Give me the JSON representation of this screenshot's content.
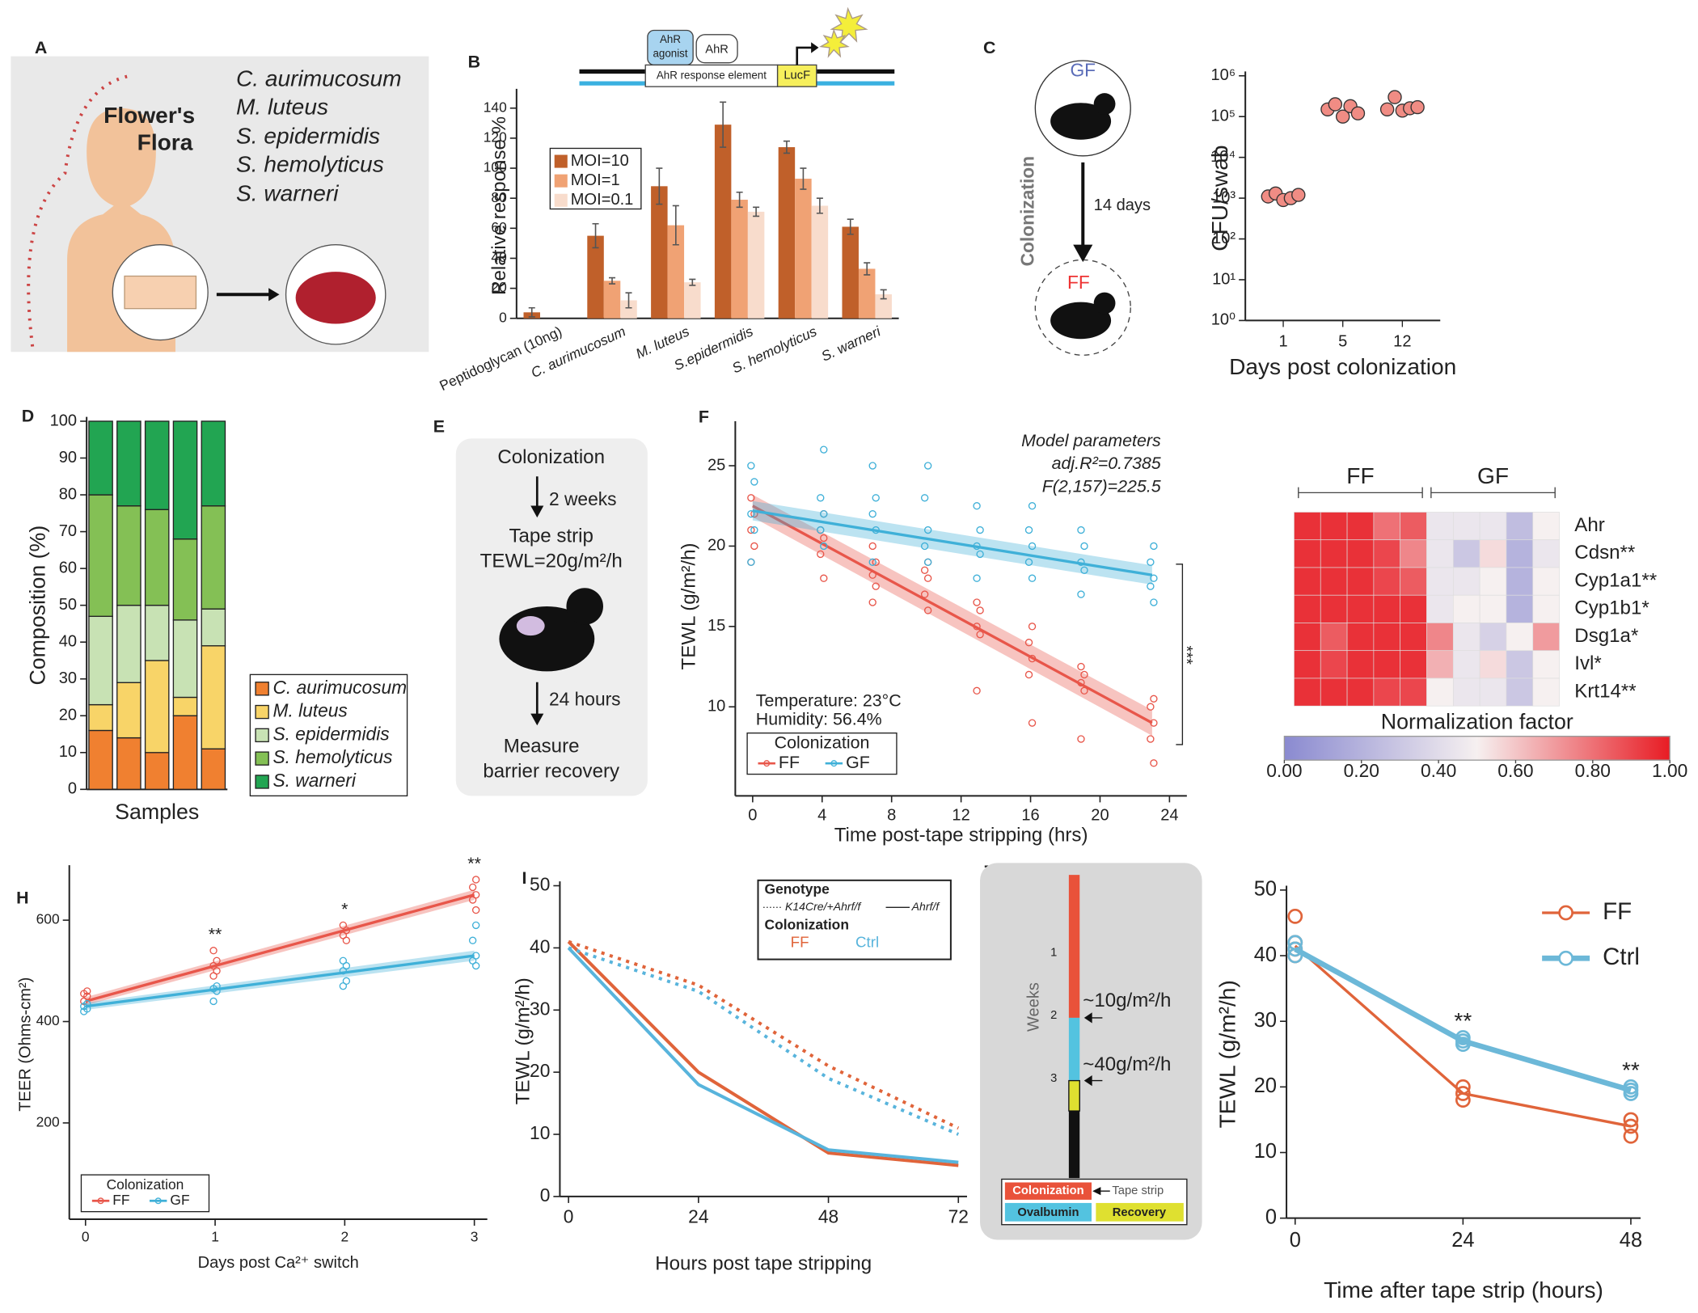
{
  "chart_data": [
    {
      "type": "bar",
      "panel": "B",
      "ylabel": "Relative response %",
      "construct": {
        "agonist_lines": [
          "AhR",
          "agonist"
        ],
        "receptor": "AhR",
        "element": "AhR response element",
        "reporter": "LucF"
      },
      "categories": [
        "Peptidoglycan (10ng)",
        "C. aurimucosum",
        "M. luteus",
        "S.epidermidis",
        "S. hemolyticus",
        "S. warneri"
      ],
      "series": [
        {
          "name": "MOI=10",
          "color": "#c0602a",
          "values": [
            4,
            55,
            88,
            129,
            114,
            61
          ],
          "errors": [
            3,
            8,
            12,
            15,
            4,
            5
          ]
        },
        {
          "name": "MOI=1",
          "color": "#f0a274",
          "values": [
            null,
            25,
            62,
            79,
            93,
            33
          ],
          "errors": [
            null,
            2,
            13,
            5,
            7,
            4
          ]
        },
        {
          "name": "MOI=0.1",
          "color": "#f8dccc",
          "values": [
            null,
            12,
            24,
            71,
            75,
            16
          ],
          "errors": [
            null,
            5,
            2,
            3,
            5,
            3
          ]
        }
      ],
      "ylim": [
        0,
        150
      ],
      "yticks": [
        0,
        20,
        40,
        60,
        80,
        100,
        120,
        140
      ]
    },
    {
      "type": "strip",
      "panel": "C",
      "ylabel": "CFU/swab",
      "xlabel": "Days post colonization",
      "log": true,
      "annotations": {
        "gf": "GF",
        "ff": "FF",
        "colonization": "Colonization",
        "duration": "14 days"
      },
      "categories": [
        "1",
        "5",
        "12"
      ],
      "color": "#f08c84",
      "values": [
        [
          1100,
          1300,
          900,
          1000,
          1200
        ],
        [
          150000,
          200000,
          100000,
          180000,
          120000
        ],
        [
          150000,
          300000,
          140000,
          160000,
          170000
        ]
      ],
      "ylim": [
        1,
        1000000
      ],
      "yticks": [
        {
          "value": 1,
          "label": "10⁰"
        },
        {
          "value": 10,
          "label": "10¹"
        },
        {
          "value": 100,
          "label": "10²"
        },
        {
          "value": 1000,
          "label": "10³"
        },
        {
          "value": 10000,
          "label": "10⁴"
        },
        {
          "value": 100000,
          "label": "10⁵"
        },
        {
          "value": 1000000,
          "label": "10⁶"
        }
      ]
    },
    {
      "type": "stacked_bar",
      "panel": "D",
      "ylabel": "Composition (%)",
      "xlabel": "Samples",
      "categories": [
        null,
        null,
        null,
        null,
        null
      ],
      "series": [
        {
          "name": "C. aurimucosum",
          "color": "#f08030",
          "values": [
            16,
            14,
            10,
            20,
            11
          ]
        },
        {
          "name": "M. luteus",
          "color": "#f8d468",
          "values": [
            7,
            15,
            25,
            5,
            28
          ]
        },
        {
          "name": "S. epidermidis",
          "color": "#c8e2b4",
          "values": [
            24,
            21,
            15,
            21,
            10
          ]
        },
        {
          "name": "S. hemolyticus",
          "color": "#84c055",
          "values": [
            33,
            27,
            26,
            22,
            28
          ]
        },
        {
          "name": "S. warneri",
          "color": "#22a552",
          "values": [
            20,
            23,
            24,
            32,
            23
          ]
        }
      ],
      "ylim": [
        0,
        100
      ],
      "yticks": [
        0,
        10,
        20,
        30,
        40,
        50,
        60,
        70,
        80,
        90,
        100
      ]
    },
    {
      "type": "regression",
      "panel": "F",
      "ylabel": "TEWL (g/m²/h)",
      "xlabel": "Time post-tape stripping (hrs)",
      "legend_title": "Colonization",
      "annotations": {
        "model_title": "Model parameters",
        "r2": "adj.R²=0.7385",
        "f": "F(2,157)=225.5",
        "temperature": "Temperature: 23°C",
        "humidity": "Humidity: 56.4%",
        "significance": "***"
      },
      "series": [
        {
          "name": "FF",
          "color": "#e8564a",
          "x": [
            0,
            0,
            0,
            0,
            0,
            4,
            4,
            4,
            4,
            4,
            7,
            7,
            7,
            7,
            7,
            10,
            10,
            10,
            10,
            10,
            13,
            13,
            13,
            13,
            13,
            16,
            16,
            16,
            16,
            16,
            19,
            19,
            19,
            19,
            19,
            23,
            23,
            23,
            23,
            23
          ],
          "y": [
            19,
            20,
            21,
            22,
            23,
            18,
            19.5,
            20.5,
            21,
            22,
            16.5,
            17.5,
            18.2,
            19,
            20,
            16,
            17,
            18,
            18.5,
            19,
            11,
            14.5,
            15,
            16,
            16.5,
            9,
            12,
            13,
            14,
            15,
            8,
            11,
            11.5,
            12,
            12.5,
            6.5,
            8,
            9,
            10,
            10.5
          ],
          "fit": {
            "x": [
              0,
              23
            ],
            "y": [
              22.5,
              9
            ],
            "lower": [
              21.8,
              8.2
            ],
            "upper": [
              23.2,
              9.8
            ]
          }
        },
        {
          "name": "GF",
          "color": "#3fb0d8",
          "x": [
            0,
            0,
            0,
            0,
            0,
            4,
            4,
            4,
            4,
            4,
            7,
            7,
            7,
            7,
            7,
            10,
            10,
            10,
            10,
            10,
            13,
            13,
            13,
            13,
            13,
            16,
            16,
            16,
            16,
            16,
            19,
            19,
            19,
            19,
            19,
            23,
            23,
            23,
            23,
            23
          ],
          "y": [
            19,
            21,
            22,
            24,
            25,
            20,
            21,
            22,
            23,
            26,
            19,
            21,
            22,
            23,
            25,
            19,
            20,
            21,
            23,
            25,
            18,
            19.5,
            20,
            21,
            22.5,
            18,
            19,
            20,
            21,
            22.5,
            17,
            18.5,
            19,
            20,
            21,
            16.5,
            17.5,
            18,
            19,
            20
          ],
          "fit": {
            "x": [
              0,
              23
            ],
            "y": [
              22.2,
              18.2
            ],
            "lower": [
              21.6,
              17.6
            ],
            "upper": [
              22.8,
              18.8
            ]
          }
        }
      ],
      "xlim": [
        -1,
        25
      ],
      "xticks": [
        0,
        4,
        8,
        12,
        16,
        20,
        24
      ],
      "ylim": [
        5,
        27.5
      ],
      "yticks": [
        10,
        15,
        20,
        25
      ]
    },
    {
      "type": "heatmap",
      "title": "Normalization factor",
      "groups": [
        "FF",
        "GF"
      ],
      "rows": [
        "Ahr",
        "Cdsn**",
        "Cyp1a1**",
        "Cyp1b1*",
        "Dsg1a*",
        "Ivl*",
        "Krt14**"
      ],
      "values": [
        [
          0.95,
          0.95,
          0.95,
          0.8,
          0.85,
          0.45,
          0.45,
          0.45,
          0.25,
          0.5
        ],
        [
          0.95,
          0.95,
          0.95,
          0.9,
          0.75,
          0.45,
          0.3,
          0.55,
          0.2,
          0.45
        ],
        [
          0.95,
          0.95,
          0.95,
          0.9,
          0.85,
          0.45,
          0.45,
          0.5,
          0.2,
          0.5
        ],
        [
          0.95,
          0.95,
          0.95,
          0.95,
          0.95,
          0.45,
          0.5,
          0.5,
          0.2,
          0.5
        ],
        [
          0.95,
          0.85,
          0.95,
          0.95,
          0.95,
          0.75,
          0.45,
          0.35,
          0.5,
          0.7
        ],
        [
          0.95,
          0.9,
          0.95,
          0.95,
          0.95,
          0.65,
          0.45,
          0.55,
          0.3,
          0.5
        ],
        [
          0.95,
          0.95,
          0.95,
          0.9,
          0.9,
          0.5,
          0.45,
          0.45,
          0.3,
          0.5
        ]
      ],
      "colormap": [
        "#8a8ad0",
        "#f6f0f0",
        "#e81c24"
      ],
      "clim": [
        0,
        1
      ],
      "cticks": [
        {
          "value": 0,
          "label": "0.00"
        },
        {
          "value": 0.2,
          "label": "0.20"
        },
        {
          "value": 0.4,
          "label": "0.40"
        },
        {
          "value": 0.6,
          "label": "0.60"
        },
        {
          "value": 0.8,
          "label": "0.80"
        },
        {
          "value": 1,
          "label": "1.00"
        }
      ]
    },
    {
      "type": "regression",
      "panel": "H",
      "ylabel": "TEER (Ohms-cm²)",
      "xlabel": "Days post Ca²⁺ switch",
      "legend_title": "Colonization",
      "series": [
        {
          "name": "FF",
          "color": "#e8564a",
          "x": [
            0,
            0,
            0,
            0,
            1,
            1,
            1,
            1,
            1,
            2,
            2,
            2,
            2,
            3,
            3,
            3,
            3,
            3
          ],
          "y": [
            440,
            450,
            455,
            460,
            490,
            500,
            510,
            520,
            540,
            560,
            570,
            580,
            590,
            620,
            640,
            650,
            665,
            680
          ],
          "fit": {
            "x": [
              0,
              3
            ],
            "y": [
              440,
              650
            ],
            "lower": [
              432,
              640
            ],
            "upper": [
              448,
              660
            ]
          }
        },
        {
          "name": "GF",
          "color": "#3fb0d8",
          "x": [
            0,
            0,
            0,
            0,
            1,
            1,
            1,
            1,
            2,
            2,
            2,
            2,
            2,
            3,
            3,
            3,
            3,
            3
          ],
          "y": [
            420,
            425,
            430,
            435,
            440,
            460,
            465,
            470,
            470,
            480,
            500,
            510,
            520,
            510,
            520,
            530,
            560,
            590
          ],
          "fit": {
            "x": [
              0,
              3
            ],
            "y": [
              430,
              530
            ],
            "lower": [
              423,
              520
            ],
            "upper": [
              437,
              540
            ]
          }
        }
      ],
      "significance": [
        {
          "x": 1,
          "label": "**"
        },
        {
          "x": 2,
          "label": "*"
        },
        {
          "x": 3,
          "label": "**"
        }
      ],
      "xlim": [
        -0.125,
        3.1
      ],
      "xticks": [
        0,
        1,
        2,
        3
      ],
      "ylim": [
        10,
        700
      ],
      "yticks": [
        200,
        400,
        600
      ]
    },
    {
      "type": "line",
      "panel": "I",
      "ylabel": "TEWL (g/m²/h)",
      "xlabel": "Hours post tape stripping",
      "legend": {
        "genotype_title": "Genotype",
        "genotypes": [
          "K14Cre/+Ahrf/f",
          "Ahrf/f"
        ],
        "colonization_title": "Colonization",
        "colonizations": [
          "FF",
          "Ctrl"
        ]
      },
      "x": [
        0,
        24,
        48,
        72
      ],
      "series": [
        {
          "color": "#e0643a",
          "dashed": false,
          "linewidth": 3,
          "values": [
            41,
            20,
            7,
            5
          ]
        },
        {
          "color": "#58b4dc",
          "dashed": false,
          "linewidth": 3,
          "values": [
            40,
            18,
            7.5,
            5.5
          ]
        },
        {
          "color": "#e0643a",
          "dashed": true,
          "linewidth": 3,
          "values": [
            41,
            34,
            21,
            11
          ]
        },
        {
          "color": "#58b4dc",
          "dashed": true,
          "linewidth": 3,
          "values": [
            40,
            33,
            19,
            10
          ]
        }
      ],
      "xlim": [
        0,
        72
      ],
      "xticks": [
        0,
        24,
        48,
        72
      ],
      "ylim": [
        0,
        50
      ],
      "yticks": [
        0,
        10,
        20,
        30,
        40,
        50
      ]
    },
    {
      "type": "line",
      "ylabel": "TEWL (g/m²/h)",
      "xlabel": "Time after tape strip  (hours)",
      "x": [
        0,
        24,
        48
      ],
      "series": [
        {
          "name": "FF",
          "color": "#e0643a",
          "dashed": false,
          "linewidth": 2.5,
          "values": [
            41.5,
            19,
            14
          ],
          "points": {
            "x": [
              0,
              0,
              0,
              0,
              24,
              24,
              24,
              48,
              48,
              48
            ],
            "y": [
              40,
              41,
              42,
              46,
              18,
              19,
              20,
              12.5,
              14,
              15
            ]
          }
        },
        {
          "name": "Ctrl",
          "color": "#6cb8d8",
          "dashed": false,
          "linewidth": 5,
          "values": [
            41,
            27,
            19.5
          ],
          "points": {
            "x": [
              0,
              0,
              0,
              24,
              24,
              24,
              48,
              48,
              48
            ],
            "y": [
              40,
              41,
              42,
              26.5,
              27,
              27.5,
              19,
              19.5,
              20
            ]
          }
        }
      ],
      "significance": [
        {
          "x": 24,
          "label": "**"
        },
        {
          "x": 48,
          "label": "**"
        }
      ],
      "xlim": [
        0,
        48
      ],
      "xticks": [
        0,
        24,
        48
      ],
      "ylim": [
        0,
        50
      ],
      "yticks": [
        0,
        10,
        20,
        30,
        40,
        50
      ]
    }
  ],
  "diagrams": {
    "A": {
      "panel": "A",
      "title_lines": [
        "Flower's",
        "Flora"
      ],
      "species": [
        "C. aurimucosum",
        "M. luteus",
        "S. epidermidis",
        "S. hemolyticus",
        "S. warneri"
      ]
    },
    "E": {
      "panel": "E",
      "steps": [
        "Colonization",
        "2 weeks",
        "Tape strip",
        "TEWL=20g/m²/h",
        "24 hours",
        "Measure",
        "barrier recovery"
      ]
    },
    "J": {
      "panel": "J",
      "axis": "Weeks",
      "ticks": [
        "1",
        "2",
        "3"
      ],
      "annotations": [
        "~10g/m²/h",
        "~40g/m²/h"
      ],
      "legend": [
        "Colonization",
        "Tape strip",
        "Ovalbumin",
        "Recovery"
      ]
    }
  }
}
